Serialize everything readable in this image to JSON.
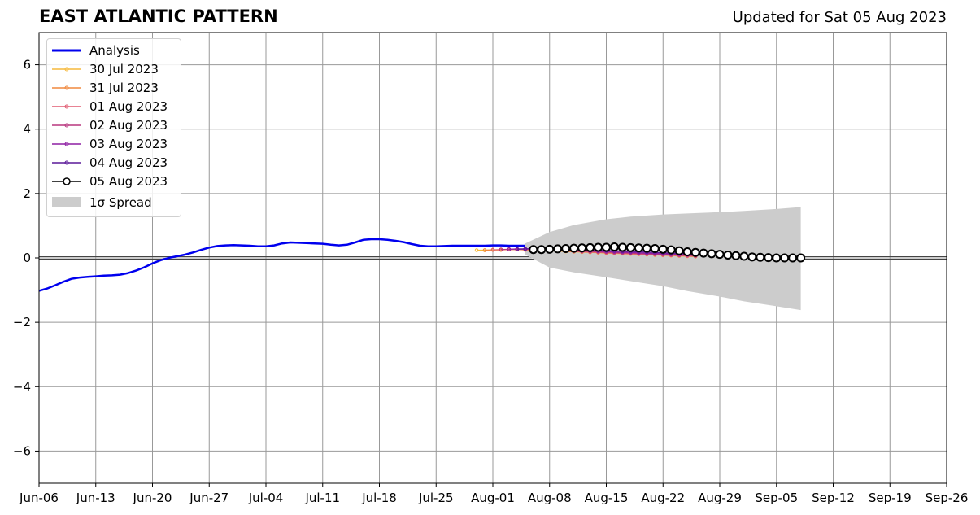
{
  "header": {
    "title": "EAST ATLANTIC PATTERN",
    "subtitle": "Updated for Sat 05 Aug 2023"
  },
  "chart_data": {
    "type": "line",
    "title": "EAST ATLANTIC PATTERN",
    "subtitle": "Updated for Sat 05 Aug 2023",
    "xlabel": "",
    "ylabel": "",
    "xlim": [
      "2023-06-06",
      "2023-09-26"
    ],
    "ylim": [
      -7,
      7
    ],
    "grid": true,
    "legend_position": "top-left",
    "x_tick_labels": [
      "Jun-06",
      "Jun-13",
      "Jun-20",
      "Jun-27",
      "Jul-04",
      "Jul-11",
      "Jul-18",
      "Jul-25",
      "Aug-01",
      "Aug-08",
      "Aug-15",
      "Aug-22",
      "Aug-29",
      "Sep-05",
      "Sep-12",
      "Sep-19",
      "Sep-26"
    ],
    "y_ticks": [
      -6,
      -4,
      -2,
      0,
      2,
      4,
      6
    ],
    "y_tick_labels": [
      "−6",
      "−4",
      "−2",
      "0",
      "2",
      "4",
      "6"
    ],
    "analysis": {
      "name": "Analysis",
      "color": "#0000ee",
      "points": [
        [
          "2023-06-06",
          -1.02
        ],
        [
          "2023-06-07",
          -0.95
        ],
        [
          "2023-06-08",
          -0.85
        ],
        [
          "2023-06-09",
          -0.74
        ],
        [
          "2023-06-10",
          -0.65
        ],
        [
          "2023-06-11",
          -0.61
        ],
        [
          "2023-06-12",
          -0.59
        ],
        [
          "2023-06-13",
          -0.57
        ],
        [
          "2023-06-14",
          -0.55
        ],
        [
          "2023-06-15",
          -0.54
        ],
        [
          "2023-06-16",
          -0.52
        ],
        [
          "2023-06-17",
          -0.47
        ],
        [
          "2023-06-18",
          -0.39
        ],
        [
          "2023-06-19",
          -0.29
        ],
        [
          "2023-06-20",
          -0.17
        ],
        [
          "2023-06-21",
          -0.07
        ],
        [
          "2023-06-22",
          0.0
        ],
        [
          "2023-06-23",
          0.05
        ],
        [
          "2023-06-24",
          0.1
        ],
        [
          "2023-06-25",
          0.17
        ],
        [
          "2023-06-26",
          0.25
        ],
        [
          "2023-06-27",
          0.32
        ],
        [
          "2023-06-28",
          0.37
        ],
        [
          "2023-06-29",
          0.39
        ],
        [
          "2023-06-30",
          0.4
        ],
        [
          "2023-07-01",
          0.39
        ],
        [
          "2023-07-02",
          0.38
        ],
        [
          "2023-07-03",
          0.36
        ],
        [
          "2023-07-04",
          0.36
        ],
        [
          "2023-07-05",
          0.39
        ],
        [
          "2023-07-06",
          0.45
        ],
        [
          "2023-07-07",
          0.48
        ],
        [
          "2023-07-08",
          0.47
        ],
        [
          "2023-07-09",
          0.46
        ],
        [
          "2023-07-10",
          0.45
        ],
        [
          "2023-07-11",
          0.44
        ],
        [
          "2023-07-12",
          0.41
        ],
        [
          "2023-07-13",
          0.39
        ],
        [
          "2023-07-14",
          0.41
        ],
        [
          "2023-07-15",
          0.48
        ],
        [
          "2023-07-16",
          0.56
        ],
        [
          "2023-07-17",
          0.58
        ],
        [
          "2023-07-18",
          0.58
        ],
        [
          "2023-07-19",
          0.56
        ],
        [
          "2023-07-20",
          0.53
        ],
        [
          "2023-07-21",
          0.49
        ],
        [
          "2023-07-22",
          0.43
        ],
        [
          "2023-07-23",
          0.38
        ],
        [
          "2023-07-24",
          0.36
        ],
        [
          "2023-07-25",
          0.36
        ],
        [
          "2023-07-26",
          0.37
        ],
        [
          "2023-07-27",
          0.38
        ],
        [
          "2023-07-28",
          0.38
        ],
        [
          "2023-07-29",
          0.38
        ],
        [
          "2023-07-30",
          0.38
        ],
        [
          "2023-07-31",
          0.38
        ],
        [
          "2023-08-01",
          0.39
        ],
        [
          "2023-08-02",
          0.39
        ],
        [
          "2023-08-03",
          0.38
        ],
        [
          "2023-08-04",
          0.38
        ],
        [
          "2023-08-05",
          0.38
        ]
      ]
    },
    "forecasts": [
      {
        "name": "30 Jul 2023",
        "color": "#f6b93b",
        "start": "2023-07-30",
        "values": [
          0.24,
          0.24,
          0.25,
          0.25,
          0.26,
          0.26,
          0.25,
          0.24,
          0.23,
          0.22,
          0.21,
          0.2,
          0.19,
          0.18,
          0.17,
          0.16,
          0.15,
          0.14,
          0.13,
          0.12,
          0.11,
          0.1,
          0.09,
          0.08,
          0.07,
          0.06,
          0.05,
          0.04
        ]
      },
      {
        "name": "31 Jul 2023",
        "color": "#f0883e",
        "start": "2023-07-31",
        "values": [
          0.24,
          0.25,
          0.25,
          0.26,
          0.26,
          0.25,
          0.25,
          0.24,
          0.23,
          0.22,
          0.21,
          0.2,
          0.19,
          0.18,
          0.17,
          0.16,
          0.15,
          0.14,
          0.13,
          0.12,
          0.11,
          0.1,
          0.09,
          0.08,
          0.07,
          0.06,
          0.05
        ]
      },
      {
        "name": "01 Aug 2023",
        "color": "#e05a70",
        "start": "2023-08-01",
        "values": [
          0.25,
          0.26,
          0.26,
          0.26,
          0.26,
          0.25,
          0.24,
          0.23,
          0.22,
          0.21,
          0.2,
          0.19,
          0.18,
          0.17,
          0.16,
          0.15,
          0.14,
          0.13,
          0.12,
          0.11,
          0.1,
          0.09,
          0.08,
          0.07,
          0.06,
          0.05
        ]
      },
      {
        "name": "02 Aug 2023",
        "color": "#b8367f",
        "start": "2023-08-02",
        "values": [
          0.26,
          0.27,
          0.27,
          0.27,
          0.27,
          0.26,
          0.25,
          0.24,
          0.23,
          0.22,
          0.21,
          0.2,
          0.19,
          0.18,
          0.17,
          0.16,
          0.15,
          0.14,
          0.13,
          0.12,
          0.11,
          0.1,
          0.09,
          0.08,
          0.07
        ]
      },
      {
        "name": "03 Aug 2023",
        "color": "#8e1fa3",
        "start": "2023-08-03",
        "values": [
          0.27,
          0.28,
          0.28,
          0.28,
          0.28,
          0.27,
          0.26,
          0.25,
          0.24,
          0.23,
          0.22,
          0.21,
          0.2,
          0.19,
          0.18,
          0.17,
          0.16,
          0.15,
          0.14,
          0.13,
          0.12,
          0.11,
          0.1,
          0.09
        ]
      },
      {
        "name": "04 Aug 2023",
        "color": "#5a1898",
        "start": "2023-08-04",
        "values": [
          0.27,
          0.28,
          0.29,
          0.29,
          0.29,
          0.29,
          0.28,
          0.27,
          0.26,
          0.25,
          0.24,
          0.23,
          0.22,
          0.21,
          0.2,
          0.19,
          0.18,
          0.17,
          0.16,
          0.15,
          0.14,
          0.13,
          0.12
        ]
      },
      {
        "name": "05 Aug 2023",
        "color": "#000000",
        "start": "2023-08-06",
        "marker": "open-circle",
        "values": [
          0.26,
          0.26,
          0.27,
          0.28,
          0.29,
          0.3,
          0.31,
          0.32,
          0.33,
          0.33,
          0.34,
          0.33,
          0.32,
          0.31,
          0.3,
          0.29,
          0.27,
          0.25,
          0.22,
          0.19,
          0.17,
          0.15,
          0.13,
          0.11,
          0.09,
          0.07,
          0.05,
          0.03,
          0.02,
          0.01,
          0.0,
          0.0,
          0.0,
          0.0
        ]
      }
    ],
    "spread": {
      "name": "1σ Spread",
      "color": "#cccccc",
      "x": [
        "2023-08-05",
        "2023-08-08",
        "2023-08-11",
        "2023-08-15",
        "2023-08-18",
        "2023-08-22",
        "2023-08-25",
        "2023-08-29",
        "2023-09-01",
        "2023-09-05",
        "2023-09-08"
      ],
      "upper": [
        0.45,
        0.8,
        1.02,
        1.2,
        1.28,
        1.35,
        1.38,
        1.42,
        1.46,
        1.52,
        1.58
      ],
      "lower": [
        0.1,
        -0.3,
        -0.45,
        -0.6,
        -0.72,
        -0.88,
        -1.03,
        -1.2,
        -1.35,
        -1.5,
        -1.62
      ]
    }
  }
}
